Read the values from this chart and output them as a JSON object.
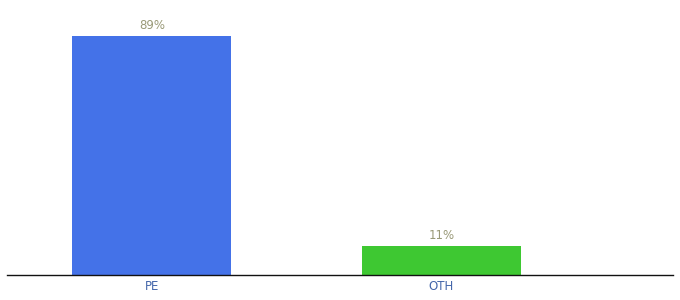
{
  "categories": [
    "PE",
    "OTH"
  ],
  "values": [
    89,
    11
  ],
  "bar_colors": [
    "#4472e8",
    "#3ec832"
  ],
  "label_texts": [
    "89%",
    "11%"
  ],
  "label_color": "#999977",
  "background_color": "#ffffff",
  "axis_line_color": "#111111",
  "tick_label_color": "#4466aa",
  "ylim": [
    0,
    100
  ],
  "x_positions": [
    1,
    2
  ],
  "bar_width": 0.55,
  "xlim": [
    0.5,
    2.8
  ],
  "label_fontsize": 8.5,
  "tick_fontsize": 8.5
}
